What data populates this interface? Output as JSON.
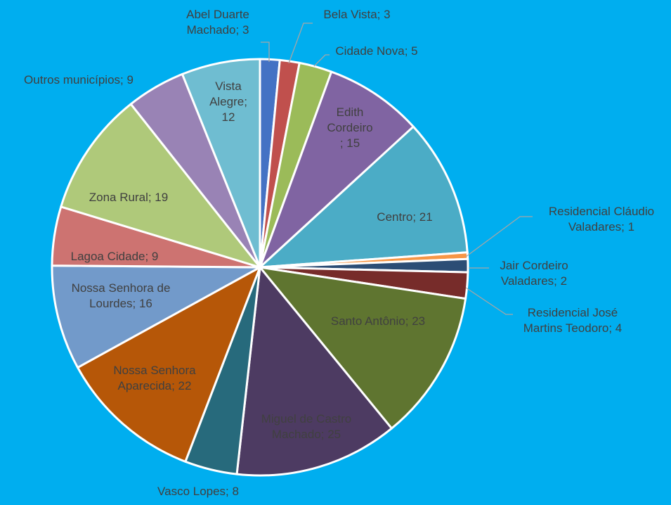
{
  "chart_data": {
    "type": "pie",
    "title": "",
    "background_color": "#00AEEF",
    "slices": [
      {
        "label_lines": [
          "Abel Duarte",
          "Machado; 3"
        ],
        "category": "Abel Duarte Machado",
        "value": 3,
        "color": "#4472C4",
        "label_color": "#404040"
      },
      {
        "label_lines": [
          "Bela Vista; 3"
        ],
        "category": "Bela Vista",
        "value": 3,
        "color": "#C0504D",
        "label_color": "#404040"
      },
      {
        "label_lines": [
          "Cidade Nova; 5"
        ],
        "category": "Cidade Nova",
        "value": 5,
        "color": "#9BBB59",
        "label_color": "#404040"
      },
      {
        "label_lines": [
          "Edith",
          "Cordeiro",
          "; 15"
        ],
        "category": "Edith Cordeiro",
        "value": 15,
        "color": "#8064A2",
        "label_color": "#404040"
      },
      {
        "label_lines": [
          "Centro; 21"
        ],
        "category": "Centro",
        "value": 21,
        "color": "#4BACC6",
        "label_color": "#404040"
      },
      {
        "label_lines": [
          "Residencial Cláudio",
          "Valadares; 1"
        ],
        "category": "Residencial Cláudio Valadares",
        "value": 1,
        "color": "#F79646",
        "label_color": "#404040"
      },
      {
        "label_lines": [
          "Jair Cordeiro",
          "Valadares; 2"
        ],
        "category": "Jair Cordeiro Valadares",
        "value": 2,
        "color": "#2C4D75",
        "label_color": "#404040"
      },
      {
        "label_lines": [
          "Residencial José",
          "Martins Teodoro; 4"
        ],
        "category": "Residencial José Martins Teodoro",
        "value": 4,
        "color": "#772C2A",
        "label_color": "#404040"
      },
      {
        "label_lines": [
          "Santo Antônio; 23"
        ],
        "category": "Santo Antônio",
        "value": 23,
        "color": "#5F7530",
        "label_color": "#404040"
      },
      {
        "label_lines": [
          "Miguel de Castro",
          "Machado; 25"
        ],
        "category": "Miguel de Castro Machado",
        "value": 25,
        "color": "#4D3B62",
        "label_color": "#404040"
      },
      {
        "label_lines": [
          "Vasco Lopes; 8"
        ],
        "category": "Vasco Lopes",
        "value": 8,
        "color": "#276A7C",
        "label_color": "#404040"
      },
      {
        "label_lines": [
          "Nossa Senhora",
          "Aparecida; 22"
        ],
        "category": "Nossa Senhora Aparecida",
        "value": 22,
        "color": "#B65708",
        "label_color": "#404040"
      },
      {
        "label_lines": [
          "Nossa Senhora de",
          "Lourdes; 16"
        ],
        "category": "Nossa Senhora de Lourdes",
        "value": 16,
        "color": "#729ACA",
        "label_color": "#404040"
      },
      {
        "label_lines": [
          "Lagoa Cidade; 9"
        ],
        "category": "Lagoa Cidade",
        "value": 9,
        "color": "#CD7371",
        "label_color": "#404040"
      },
      {
        "label_lines": [
          "Zona Rural; 19"
        ],
        "category": "Zona Rural",
        "value": 19,
        "color": "#AFC97A",
        "label_color": "#404040"
      },
      {
        "label_lines": [
          "Outros municípios; 9"
        ],
        "category": "Outros municípios",
        "value": 9,
        "color": "#9983B5",
        "label_color": "#404040"
      },
      {
        "label_lines": [
          "Vista",
          "Alegre;",
          "12"
        ],
        "category": "Vista Alegre",
        "value": 12,
        "color": "#6FBDD1",
        "label_color": "#404040"
      }
    ],
    "legend": "none",
    "data_labels": "category; value"
  }
}
